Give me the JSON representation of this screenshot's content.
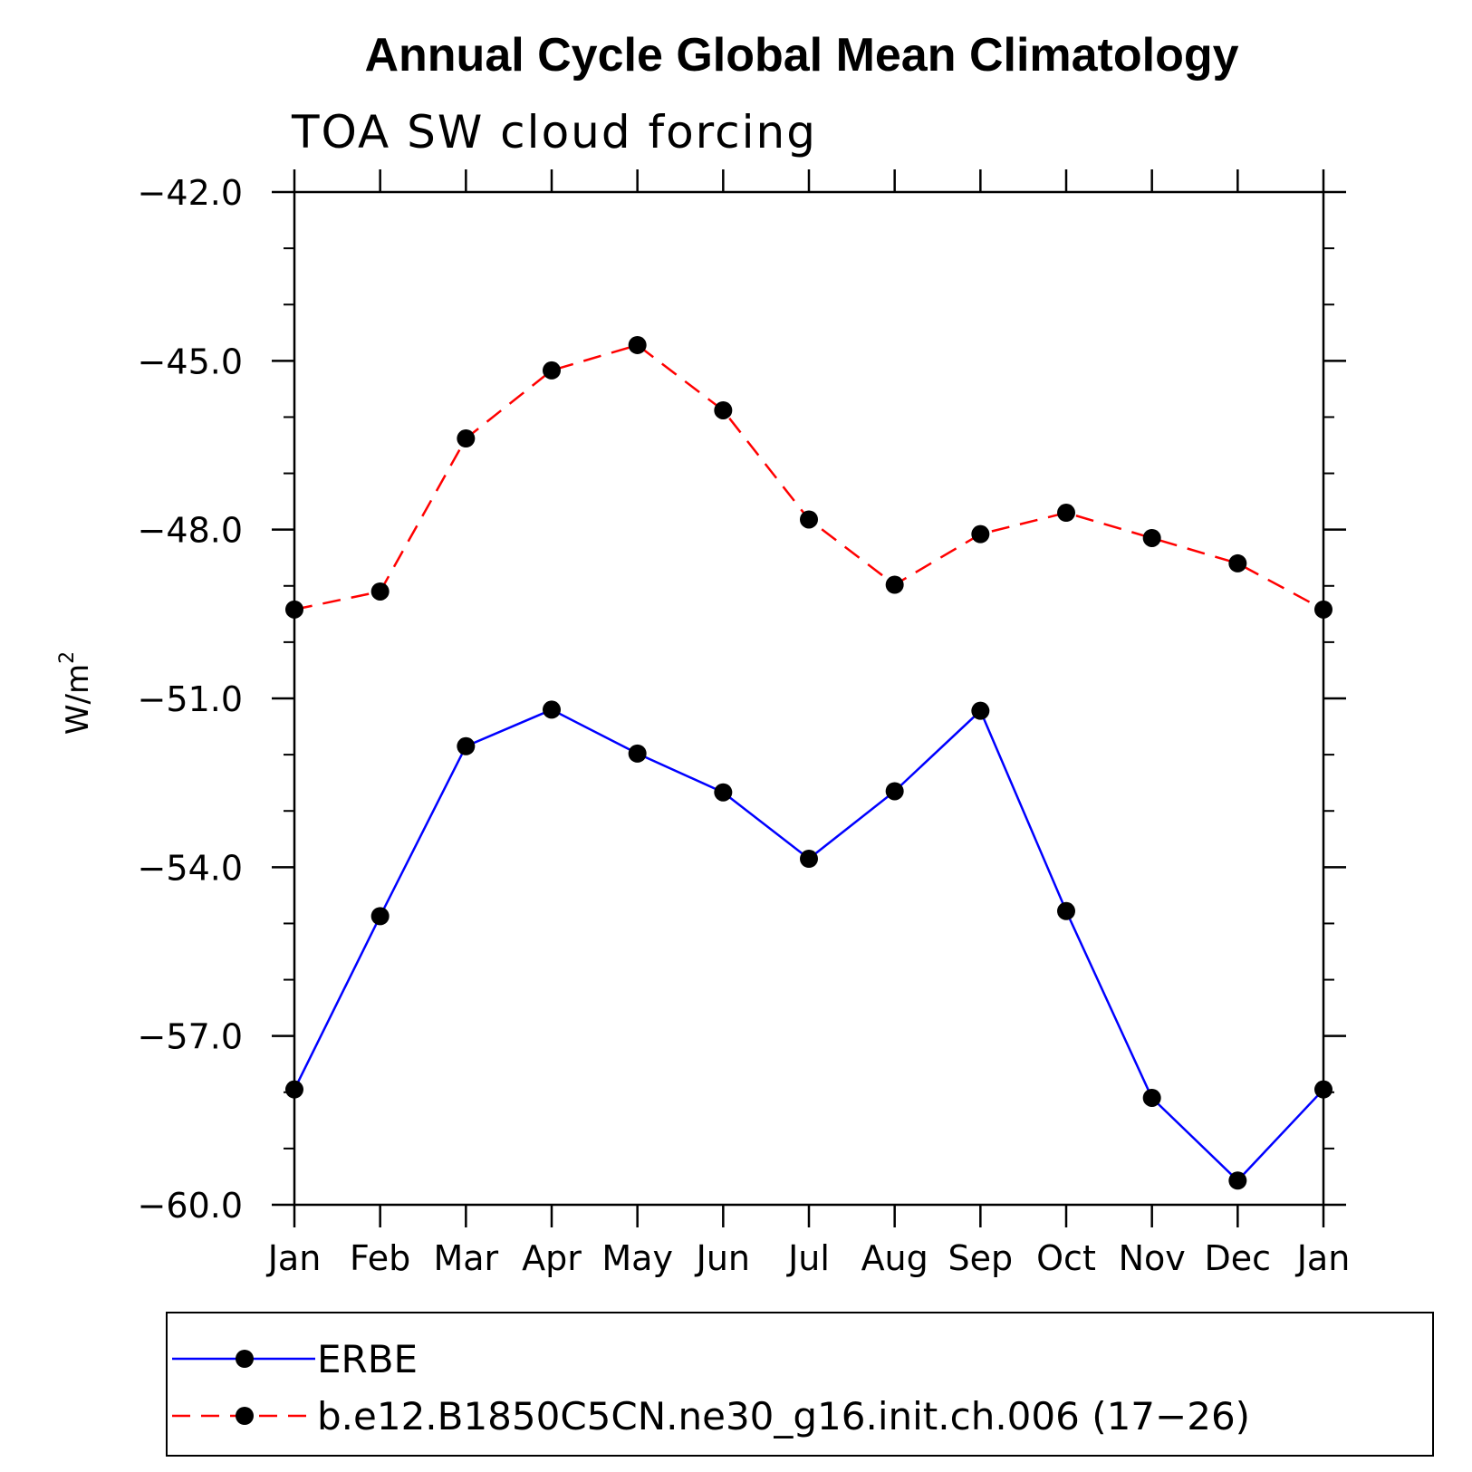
{
  "chart_data": {
    "type": "line",
    "title": "Annual Cycle Global Mean Climatology",
    "subtitle": "TOA SW cloud forcing",
    "ylabel_base": "W/m",
    "ylabel_sup": "2",
    "categories": [
      "Jan",
      "Feb",
      "Mar",
      "Apr",
      "May",
      "Jun",
      "Jul",
      "Aug",
      "Sep",
      "Oct",
      "Nov",
      "Dec",
      "Jan"
    ],
    "ylim": [
      -60.0,
      -42.0
    ],
    "yticks": [
      -42.0,
      -45.0,
      -48.0,
      -51.0,
      -54.0,
      -57.0,
      -60.0
    ],
    "ytick_labels": [
      "−42.0",
      "−45.0",
      "−48.0",
      "−51.0",
      "−54.0",
      "−57.0",
      "−60.0"
    ],
    "series": [
      {
        "name": "ERBE",
        "color": "#0000ff",
        "dash": "solid",
        "values": [
          -57.95,
          -54.87,
          -51.85,
          -51.2,
          -51.98,
          -52.67,
          -53.85,
          -52.65,
          -51.22,
          -54.78,
          -58.1,
          -59.57,
          -57.95
        ]
      },
      {
        "name": "b.e12.B1850C5CN.ne30_g16.init.ch.006 (17−26)",
        "color": "#ff0000",
        "dash": "dashed",
        "values": [
          -49.42,
          -49.1,
          -46.38,
          -45.17,
          -44.72,
          -45.88,
          -47.82,
          -48.98,
          -48.08,
          -47.7,
          -48.15,
          -48.6,
          -49.42
        ]
      }
    ]
  }
}
